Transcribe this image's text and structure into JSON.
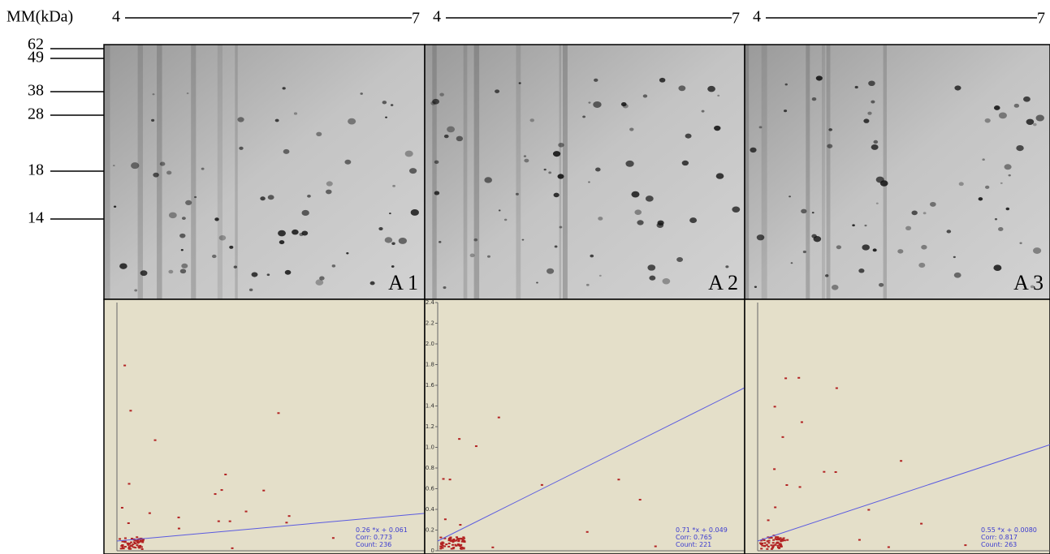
{
  "mw_label": "MM(kDa)",
  "pi_ranges": [
    {
      "start": "4",
      "end": "7"
    },
    {
      "start": "4",
      "end": "7"
    },
    {
      "start": "4",
      "end": "7"
    }
  ],
  "mw_markers": [
    "62",
    "49",
    "38",
    "28",
    "18",
    "14"
  ],
  "panels": [
    {
      "label": "A 1",
      "fit": {
        "equation": "0.26 *x + 0.061",
        "corr": "Corr: 0.773",
        "count": "Count: 236"
      }
    },
    {
      "label": "A 2",
      "fit": {
        "equation": "0.71 *x + 0.049",
        "corr": "Corr: 0.765",
        "count": "Count: 221"
      }
    },
    {
      "label": "A 3",
      "fit": {
        "equation": "0.55 *x + 0.0080",
        "corr": "Corr: 0.817",
        "count": "Count: 263"
      }
    }
  ],
  "scatter_axis": {
    "ylim": [
      0,
      2.4
    ],
    "yticks": [
      0,
      0.2,
      0.4,
      0.6,
      0.8,
      {
        "value": 1,
        "label": "1.0"
      },
      1.2,
      1.4,
      1.6,
      1.8,
      {
        "value": 2,
        "label": "2.0"
      },
      2.2,
      2.4
    ]
  }
}
